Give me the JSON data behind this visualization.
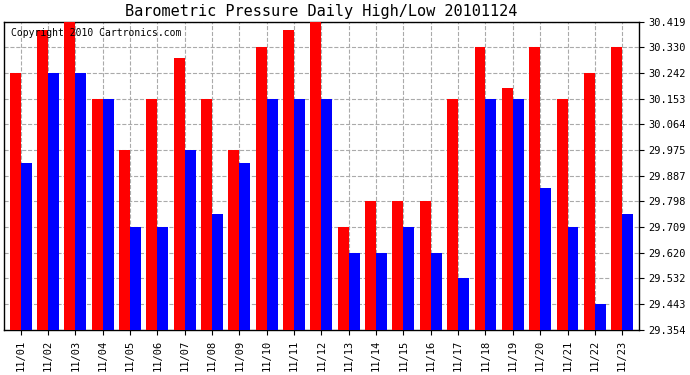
{
  "title": "Barometric Pressure Daily High/Low 20101124",
  "copyright": "Copyright 2010 Cartronics.com",
  "dates": [
    "11/01",
    "11/02",
    "11/03",
    "11/04",
    "11/05",
    "11/06",
    "11/07",
    "11/08",
    "11/09",
    "11/10",
    "11/11",
    "11/12",
    "11/13",
    "11/14",
    "11/15",
    "11/16",
    "11/17",
    "11/18",
    "11/19",
    "11/20",
    "11/21",
    "11/22",
    "11/23"
  ],
  "highs": [
    30.242,
    30.39,
    30.419,
    30.153,
    29.975,
    30.153,
    30.295,
    30.153,
    29.975,
    30.33,
    30.39,
    30.419,
    29.709,
    29.798,
    29.798,
    29.798,
    30.153,
    30.33,
    30.19,
    30.33,
    30.153,
    30.242,
    30.33
  ],
  "lows": [
    29.932,
    30.242,
    30.242,
    30.153,
    29.709,
    29.709,
    29.975,
    29.754,
    29.932,
    30.153,
    30.153,
    30.153,
    29.621,
    29.621,
    29.709,
    29.621,
    29.532,
    30.153,
    30.153,
    29.843,
    29.709,
    29.443,
    29.754
  ],
  "ymin": 29.354,
  "ymax": 30.419,
  "yticks": [
    29.354,
    29.443,
    29.532,
    29.62,
    29.709,
    29.798,
    29.887,
    29.975,
    30.064,
    30.153,
    30.242,
    30.33,
    30.419
  ],
  "high_color": "#ff0000",
  "low_color": "#0000ff",
  "bg_color": "#ffffff",
  "grid_color": "#aaaaaa",
  "title_fontsize": 11,
  "tick_fontsize": 7.5,
  "copyright_fontsize": 7
}
